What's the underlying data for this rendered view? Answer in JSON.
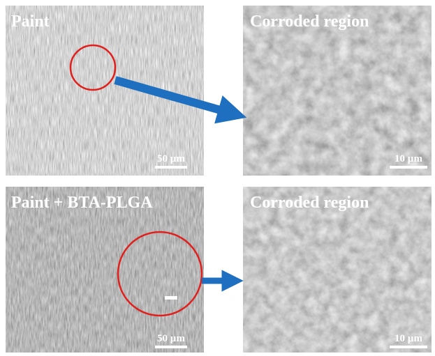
{
  "panels": [
    {
      "label": "Paint",
      "scale_bar": "50 µm"
    },
    {
      "label": "Corroded region",
      "scale_bar": "10 µm"
    },
    {
      "label": "Paint + BTA-PLGA",
      "scale_bar": "50 µm"
    },
    {
      "label": "Corroded region",
      "scale_bar": "10 µm"
    }
  ]
}
